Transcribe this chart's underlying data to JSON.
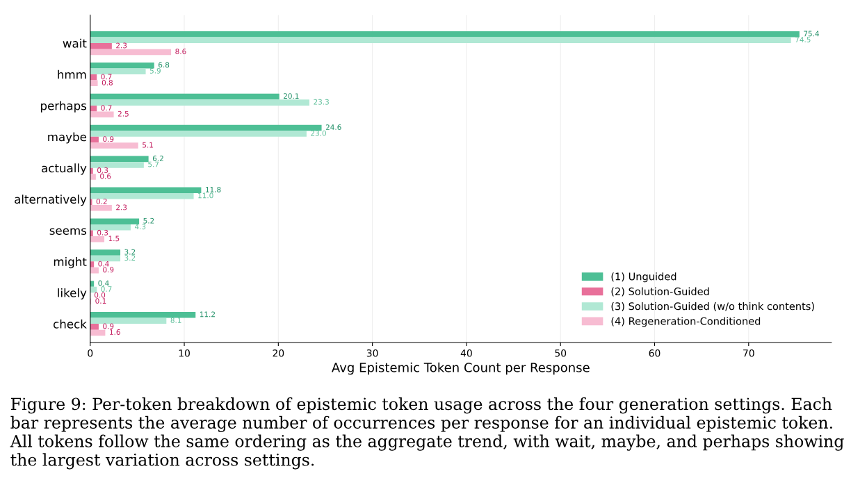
{
  "chart_data": {
    "type": "bar",
    "orientation": "horizontal",
    "categories": [
      "wait",
      "hmm",
      "perhaps",
      "maybe",
      "actually",
      "alternatively",
      "seems",
      "might",
      "likely",
      "check"
    ],
    "series": [
      {
        "name": "(1) Unguided",
        "color": "#4dbf95",
        "values": [
          75.4,
          6.8,
          20.1,
          24.6,
          6.2,
          11.8,
          5.2,
          3.2,
          0.4,
          11.2
        ],
        "value_labels": [
          "75.4",
          "6.8",
          "20.1",
          "24.6",
          "6.2",
          "11.8",
          "5.2",
          "3.2",
          "0.4",
          "11.2"
        ]
      },
      {
        "name": "(2) Solution-Guided",
        "color": "#e8709a",
        "values": [
          2.3,
          0.7,
          0.7,
          0.9,
          0.3,
          0.2,
          0.3,
          0.4,
          0.0,
          0.9
        ],
        "value_labels": [
          "2.3",
          "0.7",
          "0.7",
          "0.9",
          "0.3",
          "0.2",
          "0.3",
          "0.4",
          "0.0",
          "0.9"
        ]
      },
      {
        "name": "(3) Solution-Guided (w/o think contents)",
        "color": "#b0e8d4",
        "values": [
          74.5,
          5.9,
          23.3,
          23.0,
          5.7,
          11.0,
          4.3,
          3.2,
          0.7,
          8.1
        ],
        "value_labels": [
          "74.5",
          "5.9",
          "23.3",
          "23.0",
          "5.7",
          "11.0",
          "4.3",
          "3.2",
          "0.7",
          "8.1"
        ]
      },
      {
        "name": "(4) Regeneration-Conditioned",
        "color": "#f7bcd2",
        "values": [
          8.6,
          0.8,
          2.5,
          5.1,
          0.6,
          2.3,
          1.5,
          0.9,
          0.1,
          1.6
        ],
        "value_labels": [
          "8.6",
          "0.8",
          "2.5",
          "5.1",
          "0.6",
          "2.3",
          "1.5",
          "0.9",
          "0.1",
          "1.6"
        ]
      }
    ],
    "xlabel": "Avg Epistemic Token Count per Response",
    "xlim": [
      0,
      78.8
    ],
    "xticks": [
      0,
      10,
      20,
      30,
      40,
      50,
      60,
      70
    ],
    "grid": "x",
    "legend": "bottom right",
    "annotations": [
      "Figure 9: Per-token breakdown of epistemic token usage across the four generation settings. Each bar represents the average number of occurrences per response for an individual epistemic token. All tokens follow the same ordering as the aggregate trend, with wait, maybe, and perhaps showing the largest variation across settings."
    ]
  }
}
